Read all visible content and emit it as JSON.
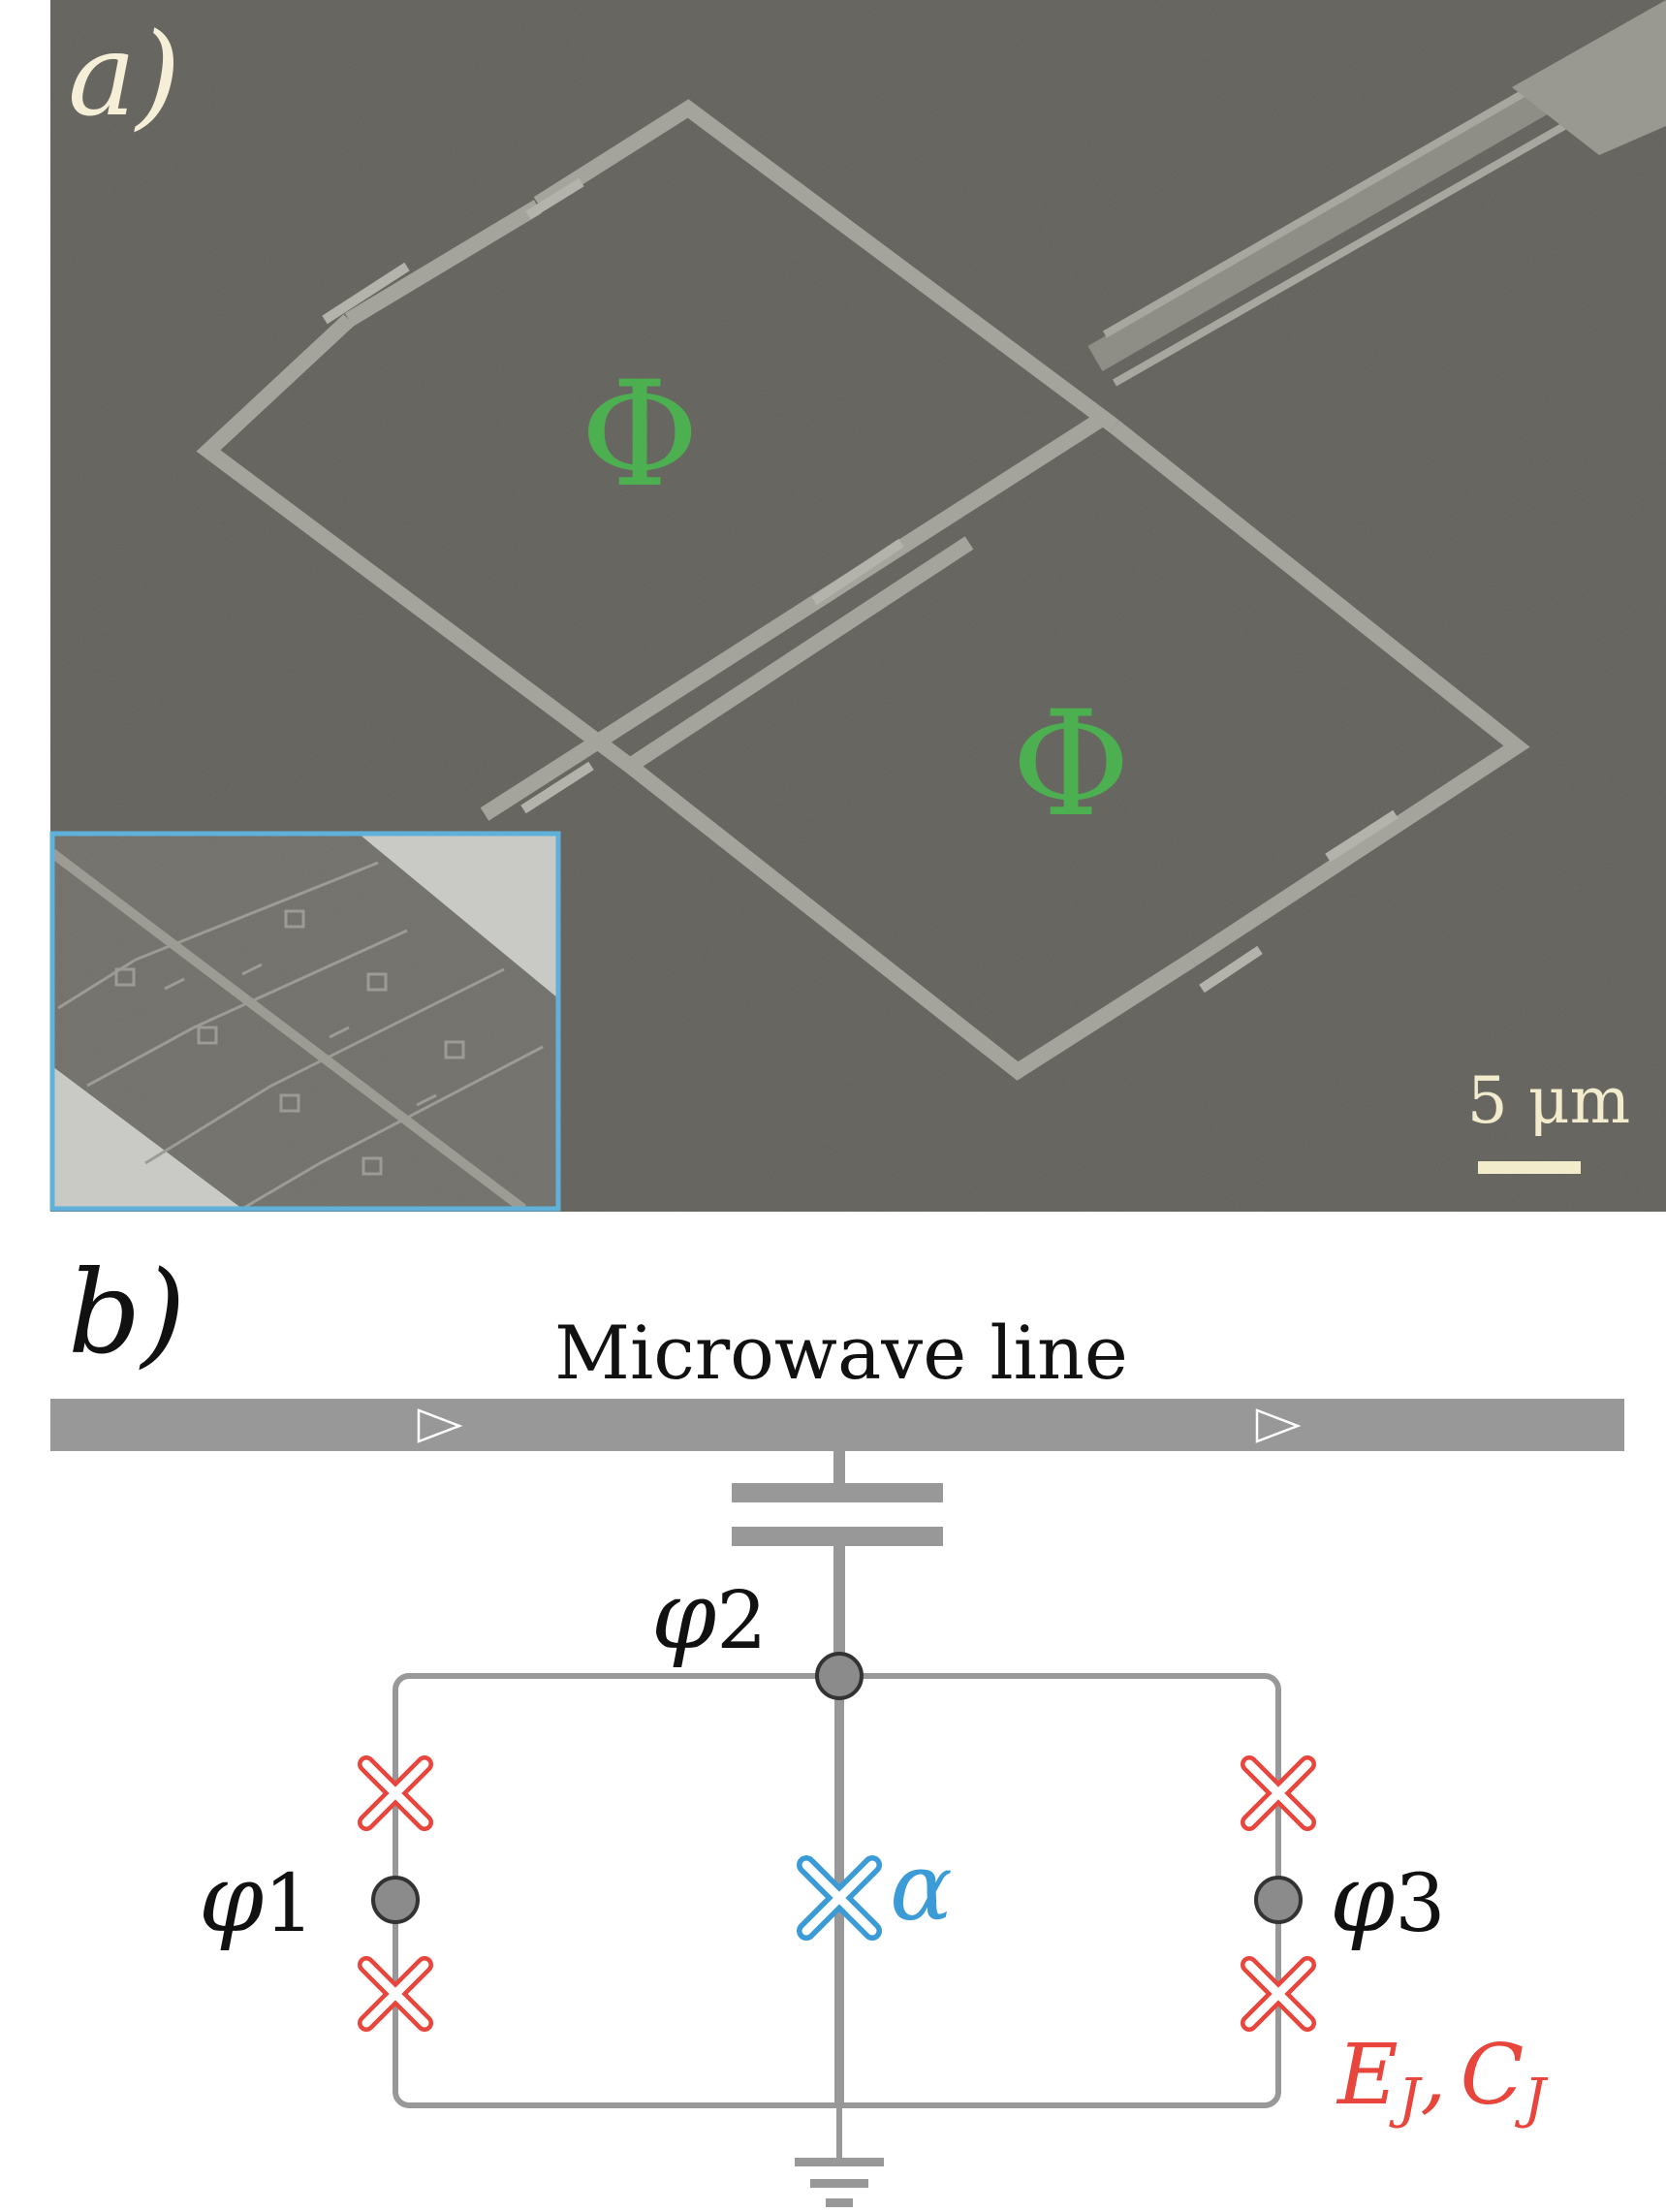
{
  "panel_a": {
    "label": "a)",
    "flux_labels": [
      "Φ",
      "Φ"
    ],
    "scale_bar_label": "5 μm",
    "colors": {
      "substrate": "#5f5e58",
      "metal_trace": "#a5a49c",
      "flux_label": "#4caf50",
      "scale_bar": "#f2eccd",
      "label_text": "#f4efd6",
      "inset_border": "#5fb1da",
      "inset_background": "#6e6d67",
      "inset_bright": "#c9c9c6"
    }
  },
  "panel_b": {
    "label": "b)",
    "microwave_line_label": "Microwave line",
    "node_labels": {
      "phi1": {
        "base": "φ",
        "sub": "1"
      },
      "phi2": {
        "base": "φ",
        "sub": "2"
      },
      "phi3": {
        "base": "φ",
        "sub": "3"
      }
    },
    "alpha_label": "α",
    "junction_params": {
      "e": "E",
      "j1": "J",
      "comma": ",",
      "c": "C",
      "j2": "J"
    },
    "colors": {
      "wire": "#999898",
      "node_fill": "#8c8b8b",
      "junction_outer": "#e8453c",
      "junction_alpha": "#3a9bd6",
      "alpha_text": "#3a9bd6",
      "param_text": "#e8453c",
      "text": "#111111"
    }
  }
}
